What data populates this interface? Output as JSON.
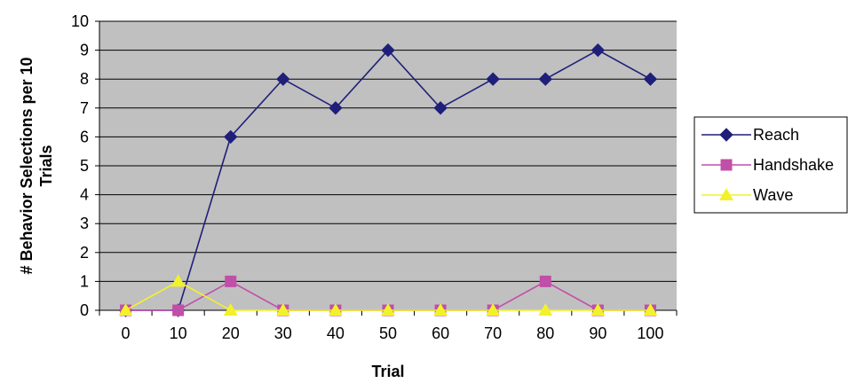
{
  "chart_data": {
    "type": "line",
    "title": "",
    "xlabel": "Trial",
    "ylabel_lines": [
      "# Behavior Selections per 10",
      "Trials"
    ],
    "categories": [
      "0",
      "10",
      "20",
      "30",
      "40",
      "50",
      "60",
      "70",
      "80",
      "90",
      "100"
    ],
    "y_ticks": [
      "0",
      "1",
      "2",
      "3",
      "4",
      "5",
      "6",
      "7",
      "8",
      "9",
      "10"
    ],
    "ylim": [
      0,
      10
    ],
    "grid": true,
    "plot_background": "#c0c0c0",
    "legend_position": "right",
    "series": [
      {
        "name": "Reach",
        "color": "#1f1f7a",
        "marker": "diamond",
        "values": [
          0,
          0,
          6,
          8,
          7,
          9,
          7,
          8,
          8,
          9,
          8
        ]
      },
      {
        "name": "Handshake",
        "color": "#c04fa8",
        "marker": "square",
        "values": [
          0,
          0,
          1,
          0,
          0,
          0,
          0,
          0,
          1,
          0,
          0
        ]
      },
      {
        "name": "Wave",
        "color": "#f2f22a",
        "marker": "triangle",
        "values": [
          0,
          1,
          0,
          0,
          0,
          0,
          0,
          0,
          0,
          0,
          0
        ]
      }
    ]
  }
}
